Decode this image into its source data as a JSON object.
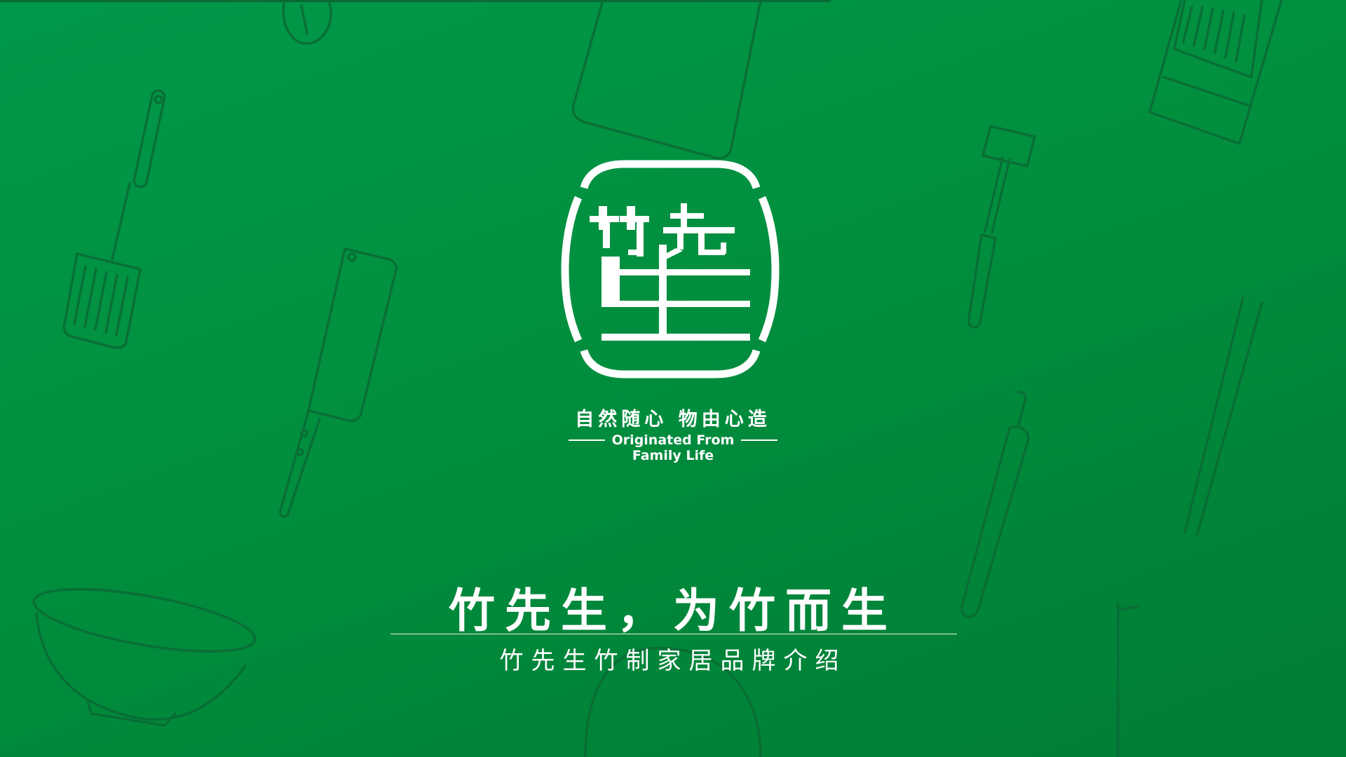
{
  "slide": {
    "background_color": "#01903f",
    "line_art_color": "#0a6a35",
    "text_color": "#ffffff"
  },
  "logo": {
    "icon": "bamboo-seal-logo",
    "glyph_top_left": "竹",
    "glyph_top_right": "先",
    "glyph_bottom": "生"
  },
  "tagline": {
    "chinese": "自然随心 物由心造",
    "english_line1": "Originated From",
    "english_line2": "Family Life"
  },
  "headline": "竹先生，为竹而生",
  "subtitle": "竹先生竹制家居品牌介绍",
  "background_icons": [
    "whisk-icon",
    "cutting-board-icon",
    "grater-icon",
    "slotted-spatula-icon",
    "cleaver-icon",
    "meat-tenderizer-icon",
    "chopsticks-icon",
    "rolling-pin-icon",
    "bowl-icon",
    "cup-icon"
  ]
}
